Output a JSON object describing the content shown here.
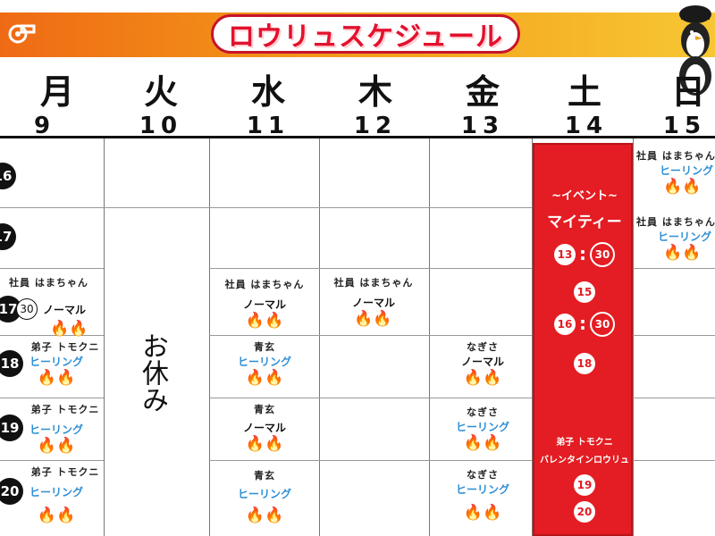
{
  "title": "ロウリュスケジュール",
  "days": [
    {
      "day": "月",
      "date": "9"
    },
    {
      "day": "火",
      "date": "10"
    },
    {
      "day": "水",
      "date": "11"
    },
    {
      "day": "木",
      "date": "12"
    },
    {
      "day": "金",
      "date": "13"
    },
    {
      "day": "土",
      "date": "14"
    },
    {
      "day": "日",
      "date": "15"
    }
  ],
  "hours": [
    "16",
    "17",
    "18",
    "19",
    "20"
  ],
  "holiday": "お休み",
  "monday": {
    "slot17": {
      "staff": "社員 はまちゃん",
      "minute": "30",
      "type": "ノーマル"
    },
    "slot18": {
      "staff": "弟子 トモクニ",
      "type": "ヒーリング"
    },
    "slot19": {
      "staff": "弟子 トモクニ",
      "type": "ヒーリング"
    },
    "slot20": {
      "staff": "弟子 トモクニ",
      "type": "ヒーリング"
    }
  },
  "wednesday": {
    "slot17": {
      "staff": "社員 はまちゃん",
      "type": "ノーマル"
    },
    "slot18": {
      "staff": "青玄",
      "type": "ヒーリング"
    },
    "slot19": {
      "staff": "青玄",
      "type": "ノーマル"
    },
    "slot20": {
      "staff": "青玄",
      "type": "ヒーリング"
    }
  },
  "thursday": {
    "slot17": {
      "staff": "社員 はまちゃん",
      "type": "ノーマル"
    }
  },
  "friday": {
    "slot18": {
      "staff": "なぎさ",
      "type": "ノーマル"
    },
    "slot19": {
      "staff": "なぎさ",
      "type": "ヒーリング"
    },
    "slot20": {
      "staff": "なぎさ",
      "type": "ヒーリング"
    }
  },
  "saturday": {
    "event_label": "~イベント~",
    "event_name": "マイティー",
    "times": [
      {
        "hour": "13",
        "minute": "30"
      },
      {
        "hour": "15"
      },
      {
        "hour": "16",
        "minute": "30"
      },
      {
        "hour": "18"
      }
    ],
    "evening_staff": "弟子 トモクニ",
    "evening_event": "バレンタインロウリュ",
    "evening_times": [
      "19",
      "20"
    ]
  },
  "sunday": {
    "slot16": {
      "staff": "社員 はまちゃん",
      "type": "ヒーリング"
    },
    "slot17": {
      "staff": "社員 はまちゃん",
      "type": "ヒーリング"
    }
  },
  "icons": {
    "fire": "fire-icon",
    "whistle": "whistle-icon",
    "mascot": "penguin-mascot"
  },
  "colors": {
    "event_red": "#e31d23",
    "healing_blue": "#2e8fd6",
    "title_red": "#e3112d"
  }
}
